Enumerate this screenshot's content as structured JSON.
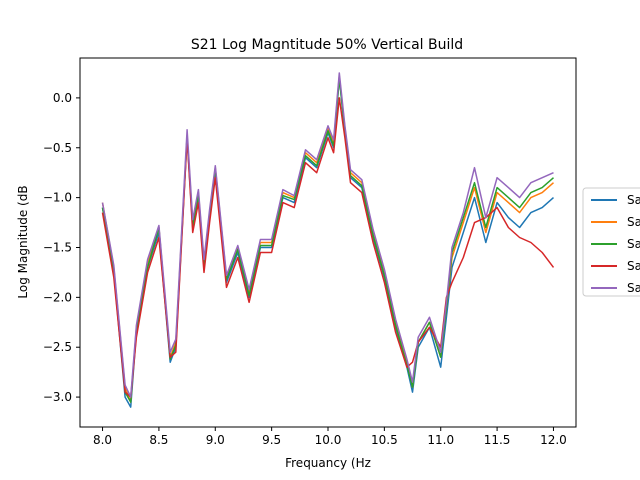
{
  "chart_data": {
    "type": "line",
    "title": "S21 Log Magntitude 50% Vertical Build",
    "xlabel": "Frequancy (Hz",
    "ylabel": "Log Magnitude (dB",
    "xlim": [
      7.8,
      12.2
    ],
    "ylim": [
      -3.3,
      0.4
    ],
    "grid": false,
    "legend_placement": "right, outside plot, clipped",
    "x_ticks": [
      "8.0",
      "8.5",
      "9.0",
      "9.5",
      "10.0",
      "10.5",
      "11.0",
      "11.5",
      "12.0"
    ],
    "y_ticks": [
      "0.0",
      "−0.5",
      "−1.0",
      "−1.5",
      "−2.0",
      "−2.5",
      "−3.0"
    ],
    "x": [
      8.0,
      8.1,
      8.2,
      8.25,
      8.3,
      8.4,
      8.5,
      8.6,
      8.65,
      8.75,
      8.8,
      8.85,
      8.9,
      8.95,
      9.0,
      9.1,
      9.2,
      9.3,
      9.4,
      9.5,
      9.6,
      9.7,
      9.8,
      9.9,
      10.0,
      10.05,
      10.1,
      10.15,
      10.2,
      10.3,
      10.4,
      10.5,
      10.6,
      10.7,
      10.75,
      10.8,
      10.9,
      11.0,
      11.05,
      11.1,
      11.2,
      11.3,
      11.4,
      11.5,
      11.6,
      11.7,
      11.8,
      11.9,
      12.0
    ],
    "series": [
      {
        "name": "Sa",
        "color": "#1f77b4",
        "values": [
          -1.1,
          -1.75,
          -3.0,
          -3.1,
          -2.35,
          -1.7,
          -1.35,
          -2.65,
          -2.5,
          -0.4,
          -1.3,
          -1.0,
          -1.7,
          -1.2,
          -0.75,
          -1.85,
          -1.55,
          -2.0,
          -1.5,
          -1.5,
          -1.0,
          -1.05,
          -0.6,
          -0.7,
          -0.35,
          -0.5,
          0.2,
          -0.35,
          -0.8,
          -0.9,
          -1.4,
          -1.8,
          -2.3,
          -2.7,
          -2.95,
          -2.5,
          -2.3,
          -2.7,
          -2.2,
          -1.7,
          -1.35,
          -1.0,
          -1.45,
          -1.05,
          -1.2,
          -1.3,
          -1.15,
          -1.1,
          -1.0
        ]
      },
      {
        "name": "Sa",
        "color": "#ff7f0e",
        "values": [
          -1.05,
          -1.7,
          -2.9,
          -3.05,
          -2.3,
          -1.65,
          -1.3,
          -2.6,
          -2.45,
          -0.38,
          -1.25,
          -0.95,
          -1.65,
          -1.15,
          -0.7,
          -1.8,
          -1.5,
          -1.95,
          -1.45,
          -1.45,
          -0.95,
          -1.0,
          -0.55,
          -0.65,
          -0.3,
          -0.45,
          0.22,
          -0.3,
          -0.75,
          -0.85,
          -1.35,
          -1.75,
          -2.25,
          -2.65,
          -2.9,
          -2.45,
          -2.25,
          -2.6,
          -2.1,
          -1.6,
          -1.25,
          -0.9,
          -1.35,
          -0.95,
          -1.05,
          -1.15,
          -1.0,
          -0.95,
          -0.85
        ]
      },
      {
        "name": "Sa",
        "color": "#2ca02c",
        "values": [
          -1.1,
          -1.72,
          -2.95,
          -3.05,
          -2.32,
          -1.7,
          -1.3,
          -2.62,
          -2.48,
          -0.38,
          -1.28,
          -0.98,
          -1.68,
          -1.18,
          -0.72,
          -1.82,
          -1.52,
          -1.98,
          -1.48,
          -1.48,
          -0.98,
          -1.02,
          -0.58,
          -0.68,
          -0.33,
          -0.48,
          0.2,
          -0.33,
          -0.78,
          -0.88,
          -1.38,
          -1.78,
          -2.28,
          -2.68,
          -2.9,
          -2.45,
          -2.25,
          -2.6,
          -2.1,
          -1.55,
          -1.2,
          -0.85,
          -1.3,
          -0.9,
          -1.0,
          -1.1,
          -0.95,
          -0.9,
          -0.8
        ]
      },
      {
        "name": "Sa",
        "color": "#d62728",
        "values": [
          -1.15,
          -1.8,
          -2.95,
          -3.0,
          -2.4,
          -1.75,
          -1.4,
          -2.6,
          -2.55,
          -0.4,
          -1.35,
          -1.05,
          -1.75,
          -1.25,
          -0.8,
          -1.9,
          -1.6,
          -2.05,
          -1.55,
          -1.55,
          -1.05,
          -1.1,
          -0.65,
          -0.75,
          -0.4,
          -0.55,
          0.0,
          -0.4,
          -0.85,
          -0.95,
          -1.45,
          -1.85,
          -2.35,
          -2.7,
          -2.65,
          -2.45,
          -2.3,
          -2.5,
          -2.0,
          -1.85,
          -1.6,
          -1.25,
          -1.2,
          -1.1,
          -1.3,
          -1.4,
          -1.45,
          -1.55,
          -1.7
        ]
      },
      {
        "name": "Sa",
        "color": "#9467bd",
        "values": [
          -1.05,
          -1.68,
          -2.88,
          -3.0,
          -2.28,
          -1.62,
          -1.28,
          -2.55,
          -2.42,
          -0.32,
          -1.22,
          -0.92,
          -1.62,
          -1.12,
          -0.68,
          -1.78,
          -1.48,
          -1.92,
          -1.42,
          -1.42,
          -0.92,
          -0.98,
          -0.52,
          -0.62,
          -0.28,
          -0.42,
          0.25,
          -0.28,
          -0.72,
          -0.82,
          -1.32,
          -1.72,
          -2.22,
          -2.62,
          -2.85,
          -2.4,
          -2.2,
          -2.55,
          -2.05,
          -1.5,
          -1.15,
          -0.7,
          -1.2,
          -0.8,
          -0.9,
          -1.0,
          -0.85,
          -0.8,
          -0.75
        ]
      }
    ]
  }
}
